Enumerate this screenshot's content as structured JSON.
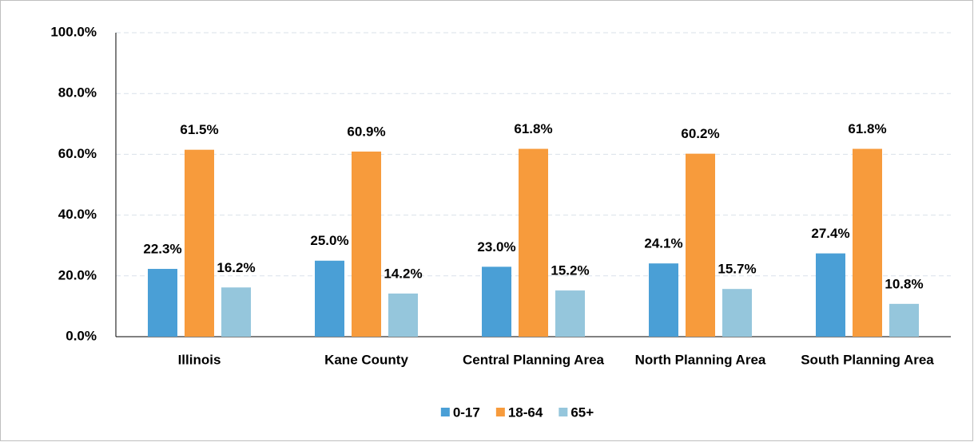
{
  "chart_data": {
    "type": "bar",
    "categories": [
      "Illinois",
      "Kane County",
      "Central Planning Area",
      "North Planning Area",
      "South Planning Area"
    ],
    "series": [
      {
        "name": "0-17",
        "color": "#4a9fd6",
        "values": [
          22.3,
          25.0,
          23.0,
          24.1,
          27.4
        ],
        "value_labels": [
          "22.3%",
          "25.0%",
          "23.0%",
          "24.1%",
          "27.4%"
        ]
      },
      {
        "name": "18-64",
        "color": "#f79b3c",
        "values": [
          61.5,
          60.9,
          61.8,
          60.2,
          61.8
        ],
        "value_labels": [
          "61.5%",
          "60.9%",
          "61.8%",
          "60.2%",
          "61.8%"
        ]
      },
      {
        "name": "65+",
        "color": "#95c6dc",
        "values": [
          16.2,
          14.2,
          15.2,
          15.7,
          10.8
        ],
        "value_labels": [
          "16.2%",
          "14.2%",
          "15.2%",
          "15.7%",
          "10.8%"
        ]
      }
    ],
    "ylim": [
      0,
      100
    ],
    "yticks": [
      {
        "value": 0,
        "label": "0.0%"
      },
      {
        "value": 20,
        "label": "20.0%"
      },
      {
        "value": 40,
        "label": "40.0%"
      },
      {
        "value": 60,
        "label": "60.0%"
      },
      {
        "value": 80,
        "label": "80.0%"
      },
      {
        "value": 100,
        "label": "100.0%"
      }
    ],
    "grid": true,
    "legend": "bottom"
  }
}
